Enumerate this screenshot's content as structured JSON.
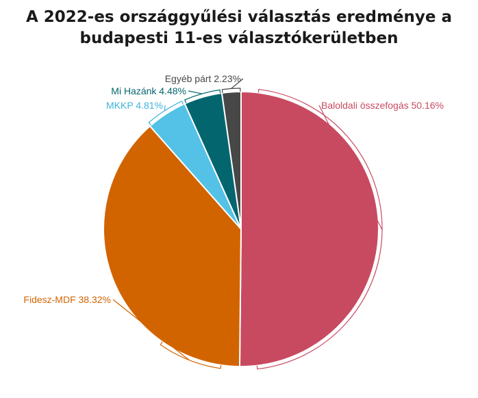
{
  "chart_data": {
    "type": "pie",
    "title_lines": [
      "A 2022-es országgyűlési választás eredménye a",
      "budapesti 11-es választókerületben"
    ],
    "slices": [
      {
        "label": "Baloldali összefogás 50.16%",
        "value": 50.16,
        "color": "#c84a60",
        "label_color": "#c84a60"
      },
      {
        "label": "Fidesz-MDF 38.32%",
        "value": 38.32,
        "color": "#d26400",
        "label_color": "#d26400"
      },
      {
        "label": "MKKP 4.81%",
        "value": 4.81,
        "color": "#54c2e6",
        "label_color": "#3fb4dc"
      },
      {
        "label": "Mi Hazánk 4.48%",
        "value": 4.48,
        "color": "#03666f",
        "label_color": "#03666f"
      },
      {
        "label": "Egyéb párt 2.23%",
        "value": 2.23,
        "color": "#474747",
        "label_color": "#474747"
      }
    ]
  }
}
